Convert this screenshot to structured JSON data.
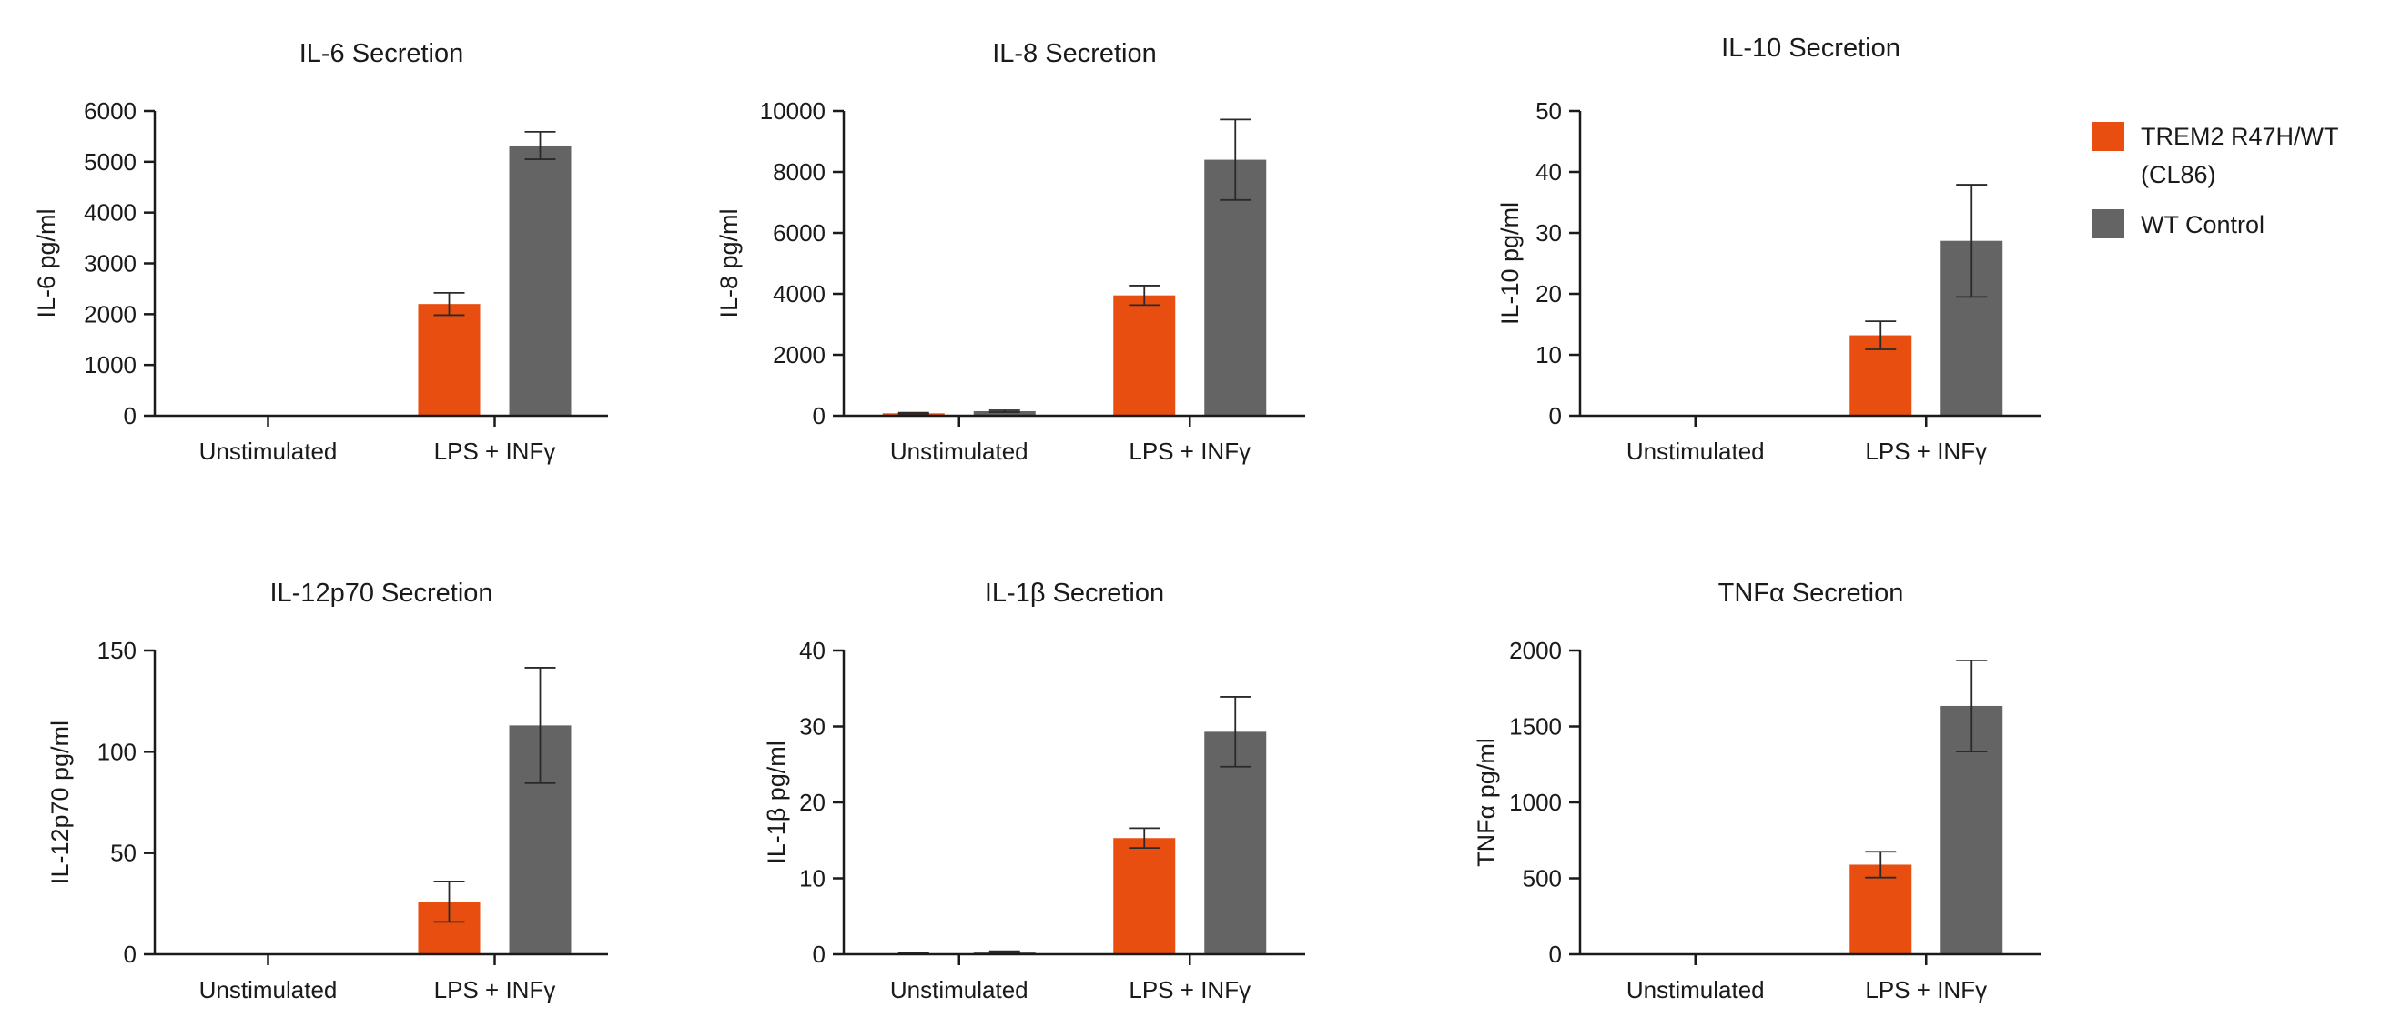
{
  "colors": {
    "trem2": "#E84E10",
    "wt": "#646464",
    "axis": "#1a1a1a"
  },
  "legend": {
    "items": [
      {
        "lines": [
          "TREM2 R47H/WT",
          "(CL86)"
        ],
        "color_key": "trem2"
      },
      {
        "lines": [
          "WT Control"
        ],
        "color_key": "wt"
      }
    ]
  },
  "chart_data": [
    {
      "type": "bar",
      "title": "IL-6 Secretion",
      "ylabel": "IL-6 pg/ml",
      "categories": [
        "Unstimulated",
        "LPS + INFγ"
      ],
      "ylim": [
        0,
        6000
      ],
      "yticks": [
        0,
        1000,
        2000,
        3000,
        4000,
        5000,
        6000
      ],
      "series": [
        {
          "name": "TREM2 R47H/WT (CL86)",
          "values": [
            0,
            2200
          ],
          "errors": [
            0,
            220
          ]
        },
        {
          "name": "WT Control",
          "values": [
            0,
            5320
          ],
          "errors": [
            0,
            270
          ]
        }
      ]
    },
    {
      "type": "bar",
      "title": "IL-8 Secretion",
      "ylabel": "IL-8 pg/ml",
      "categories": [
        "Unstimulated",
        "LPS + INFγ"
      ],
      "ylim": [
        0,
        10000
      ],
      "yticks": [
        0,
        2000,
        4000,
        6000,
        8000,
        10000
      ],
      "series": [
        {
          "name": "TREM2 R47H/WT (CL86)",
          "values": [
            80,
            3950
          ],
          "errors": [
            20,
            320
          ]
        },
        {
          "name": "WT Control",
          "values": [
            150,
            8400
          ],
          "errors": [
            30,
            1320
          ]
        }
      ]
    },
    {
      "type": "bar",
      "title": "IL-10 Secretion",
      "ylabel": "IL-10 pg/ml",
      "categories": [
        "Unstimulated",
        "LPS + INFγ"
      ],
      "ylim": [
        0,
        50
      ],
      "yticks": [
        0,
        10,
        20,
        30,
        40,
        50
      ],
      "series": [
        {
          "name": "TREM2 R47H/WT (CL86)",
          "values": [
            0,
            13.2
          ],
          "errors": [
            0,
            2.3
          ]
        },
        {
          "name": "WT Control",
          "values": [
            0,
            28.7
          ],
          "errors": [
            0,
            9.2
          ]
        }
      ]
    },
    {
      "type": "bar",
      "title": "IL-12p70 Secretion",
      "ylabel": "IL-12p70 pg/ml",
      "categories": [
        "Unstimulated",
        "LPS + INFγ"
      ],
      "ylim": [
        0,
        150
      ],
      "yticks": [
        0,
        50,
        100,
        150
      ],
      "series": [
        {
          "name": "TREM2 R47H/WT (CL86)",
          "values": [
            0,
            26
          ],
          "errors": [
            0,
            10
          ]
        },
        {
          "name": "WT Control",
          "values": [
            0,
            113
          ],
          "errors": [
            0,
            28.5
          ]
        }
      ]
    },
    {
      "type": "bar",
      "title": "IL-1β Secretion",
      "ylabel": "IL-1β pg/ml",
      "categories": [
        "Unstimulated",
        "LPS + INFγ"
      ],
      "ylim": [
        0,
        40
      ],
      "yticks": [
        0,
        10,
        20,
        30,
        40
      ],
      "series": [
        {
          "name": "TREM2 R47H/WT (CL86)",
          "values": [
            0.1,
            15.3
          ],
          "errors": [
            0.05,
            1.3
          ]
        },
        {
          "name": "WT Control",
          "values": [
            0.3,
            29.3
          ],
          "errors": [
            0.1,
            4.6
          ]
        }
      ]
    },
    {
      "type": "bar",
      "title": "TNFα Secretion",
      "ylabel": "TNFα pg/ml",
      "categories": [
        "Unstimulated",
        "LPS + INFγ"
      ],
      "ylim": [
        0,
        2000
      ],
      "yticks": [
        0,
        500,
        1000,
        1500,
        2000
      ],
      "series": [
        {
          "name": "TREM2 R47H/WT (CL86)",
          "values": [
            0,
            590
          ],
          "errors": [
            0,
            85
          ]
        },
        {
          "name": "WT Control",
          "values": [
            0,
            1635
          ],
          "errors": [
            0,
            300
          ]
        }
      ]
    }
  ]
}
